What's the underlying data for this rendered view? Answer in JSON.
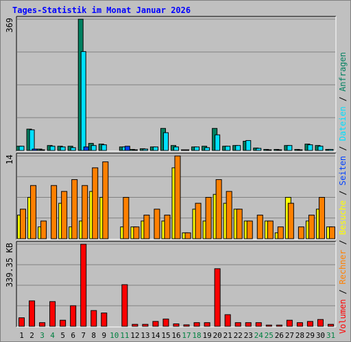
{
  "chart_data": {
    "type": "bar",
    "title": "Tages-Statistik im Monat Januar 2026",
    "categories": [
      "1",
      "2",
      "3",
      "4",
      "5",
      "6",
      "7",
      "8",
      "9",
      "10",
      "11",
      "12",
      "13",
      "14",
      "15",
      "16",
      "17",
      "18",
      "19",
      "20",
      "21",
      "22",
      "23",
      "24",
      "25",
      "26",
      "27",
      "28",
      "29",
      "30",
      "31"
    ],
    "weekend_days": [
      "3",
      "4",
      "10",
      "11",
      "17",
      "18",
      "24",
      "25",
      "31"
    ],
    "colors": {
      "anfragen": "#008060",
      "dateien": "#00e0ff",
      "seiten": "#0040ff",
      "besuche": "#ffff00",
      "rechner": "#ff8000",
      "volumen": "#ff0000",
      "title": "#0000ff",
      "weekday_label": "#000000",
      "weekend_label": "#008040"
    },
    "panels": [
      {
        "id": "requests",
        "ymax": 369,
        "ymax_label": "369",
        "series": [
          {
            "name": "Anfragen",
            "values": [
              12,
              60,
              4,
              14,
              12,
              12,
              369,
              20,
              18,
              0,
              10,
              3,
              5,
              10,
              62,
              14,
              1,
              10,
              12,
              62,
              12,
              14,
              26,
              7,
              3,
              3,
              14,
              3,
              18,
              14,
              3
            ]
          },
          {
            "name": "Dateien",
            "values": [
              12,
              58,
              2,
              12,
              10,
              8,
              278,
              14,
              16,
              0,
              10,
              2,
              4,
              10,
              50,
              10,
              1,
              10,
              8,
              44,
              12,
              14,
              28,
              6,
              2,
              2,
              14,
              2,
              16,
              12,
              3
            ]
          },
          {
            "name": "Seiten",
            "values": [
              0,
              4,
              0,
              0,
              0,
              0,
              10,
              0,
              0,
              0,
              12,
              0,
              0,
              0,
              0,
              0,
              0,
              0,
              0,
              0,
              0,
              0,
              0,
              0,
              0,
              0,
              0,
              0,
              0,
              0,
              0
            ]
          }
        ]
      },
      {
        "id": "visits",
        "ymax": 14,
        "ymax_label": "14",
        "series": [
          {
            "name": "Besuche",
            "values": [
              4,
              7,
              2,
              0,
              6,
              2,
              3,
              8,
              7,
              0,
              2,
              2,
              3,
              0,
              3,
              12,
              1,
              5,
              3,
              7.5,
              6,
              5,
              3,
              0,
              3,
              1,
              7,
              0,
              3,
              5,
              2
            ]
          },
          {
            "name": "Rechner",
            "values": [
              5,
              9,
              3,
              9,
              8,
              10,
              9,
              12,
              13,
              0,
              7,
              2,
              4,
              5,
              4,
              14,
              1,
              6,
              7,
              10,
              8,
              5,
              3,
              4,
              3,
              2,
              6,
              2,
              4,
              7,
              2
            ]
          }
        ]
      },
      {
        "id": "volume",
        "ymax": 339.35,
        "ymax_label": "339.35 KB",
        "series": [
          {
            "name": "Volumen",
            "values": [
              35,
              105,
              15,
              102,
              25,
              85,
              339.35,
              65,
              55,
              0,
              172,
              8,
              8,
              20,
              30,
              10,
              6,
              15,
              15,
              238,
              48,
              15,
              15,
              15,
              5,
              5,
              25,
              15,
              20,
              28,
              8
            ]
          }
        ]
      }
    ],
    "legend": [
      {
        "label": "Volumen",
        "color_key": "volumen"
      },
      {
        "label": "Rechner",
        "color_key": "rechner"
      },
      {
        "label": "Besuche",
        "color_key": "besuche"
      },
      {
        "label": "Seiten",
        "color_key": "seiten"
      },
      {
        "label": "Dateien",
        "color_key": "dateien"
      },
      {
        "label": "Anfragen",
        "color_key": "anfragen"
      }
    ],
    "legend_separator": "/",
    "legend_placement": "right-vertical"
  }
}
